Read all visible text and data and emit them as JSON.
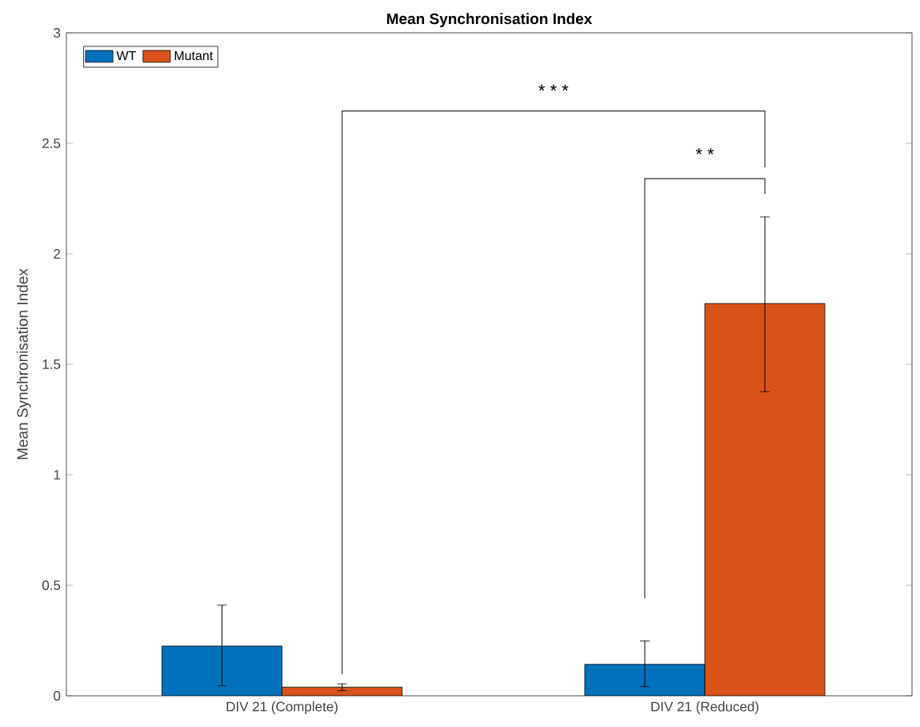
{
  "chart_data": {
    "type": "bar",
    "title": "Mean Synchronisation Index",
    "ylabel": "Mean Synchronisation Index",
    "categories": [
      "DIV 21 (Complete)",
      "DIV 21 (Reduced)"
    ],
    "series": [
      {
        "name": "WT",
        "color": "#0072bd",
        "values": [
          0.225,
          0.142
        ],
        "errors": [
          [
            0.045,
            0.41
          ],
          [
            0.041,
            0.248
          ]
        ]
      },
      {
        "name": "Mutant",
        "color": "#d95319",
        "values": [
          0.039,
          1.775
        ],
        "errors": [
          [
            0.023,
            0.054
          ],
          [
            1.376,
            2.167
          ]
        ]
      }
    ],
    "ylim": [
      0,
      3
    ],
    "yticks": [
      0,
      0.5,
      1,
      1.5,
      2,
      2.5,
      3
    ],
    "legend": "top left",
    "grid": false,
    "annotations": [
      "* * *",
      "* *"
    ]
  }
}
